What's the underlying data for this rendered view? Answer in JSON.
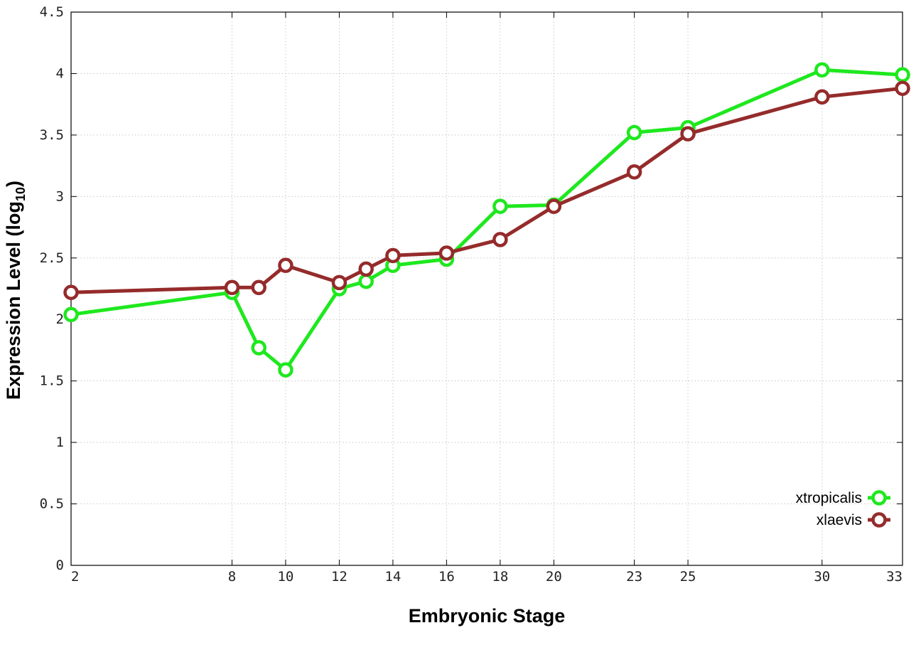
{
  "chart_data": {
    "type": "line",
    "xlabel": "Embryonic Stage",
    "ylabel_main": "Expression Level (log",
    "ylabel_sub": "10",
    "ylabel_close": ")",
    "ylim": [
      0,
      4.5
    ],
    "yticks": [
      0,
      0.5,
      1,
      1.5,
      2,
      2.5,
      3,
      3.5,
      4,
      4.5
    ],
    "ytick_labels": [
      "0",
      "0.5",
      "1",
      "1.5",
      "2",
      "2.5",
      "3",
      "3.5",
      "4",
      "4.5"
    ],
    "xticks": [
      2,
      8,
      10,
      12,
      14,
      16,
      18,
      20,
      23,
      25,
      30,
      33
    ],
    "xtick_labels": [
      "2",
      "8",
      "10",
      "12",
      "14",
      "16",
      "18",
      "20",
      "23",
      "25",
      "30",
      "33"
    ],
    "x": [
      2,
      8,
      9,
      10,
      12,
      13,
      14,
      16,
      18,
      20,
      23,
      25,
      30,
      33
    ],
    "grid": true,
    "legend_position": "bottom-right",
    "series": [
      {
        "name": "xtropicalis",
        "color": "#1ee81e",
        "values": [
          2.04,
          2.22,
          1.77,
          1.59,
          2.25,
          2.31,
          2.44,
          2.49,
          2.92,
          2.93,
          3.52,
          3.56,
          4.03,
          3.99
        ]
      },
      {
        "name": "xlaevis",
        "color": "#952b2b",
        "values": [
          2.22,
          2.26,
          2.26,
          2.44,
          2.3,
          2.41,
          2.52,
          2.54,
          2.65,
          2.92,
          3.2,
          3.51,
          3.81,
          3.88
        ]
      }
    ]
  }
}
